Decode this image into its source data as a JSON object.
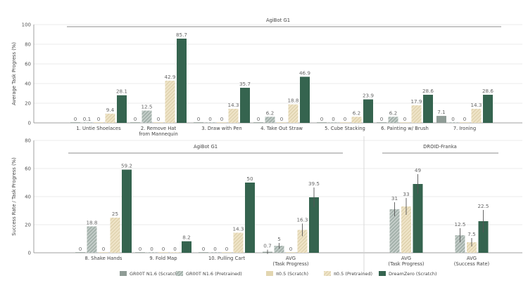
{
  "colors": {
    "gr_scratch": "#8f9c96",
    "gr_pretrained": "#a7b4ae",
    "pi_scratch": "#e3d6b0",
    "pi_pretrained": "#eee3c6",
    "dreamzero": "#35644f",
    "grid": "#e4e4e4",
    "axis": "#888888"
  },
  "legend": [
    {
      "key": "gr_scratch",
      "label": "GR00T N1.6 (Scratch)"
    },
    {
      "key": "gr_pretrained",
      "label": "GR00T N1.6 (Pretrained)"
    },
    {
      "key": "pi_scratch",
      "label": "π0.5 (Scratch)"
    },
    {
      "key": "pi_pretrained",
      "label": "π0.5 (Pretrained)"
    },
    {
      "key": "dreamzero",
      "label": "DreamZero (Scratch)"
    }
  ],
  "chart_data": [
    {
      "type": "bar",
      "ylabel": "Average Task Progress (%)",
      "ylim": [
        0,
        100
      ],
      "yticks": [
        0,
        20,
        40,
        60,
        80,
        100
      ],
      "group_labels": [
        "AgiBot G1"
      ],
      "categories": [
        [
          "1. Untie Shoelaces"
        ],
        [
          "2. Remove Hat",
          "from Mannequin"
        ],
        [
          "3. Draw with Pen"
        ],
        [
          "4. Take Out Straw"
        ],
        [
          "5. Cube Stacking"
        ],
        [
          "6. Painting w/ Brush"
        ],
        [
          "7. Ironing"
        ]
      ],
      "series": [
        {
          "name": "GR00T N1.6 (Scratch)",
          "values": [
            0,
            0,
            0,
            0,
            0,
            0,
            7.1
          ]
        },
        {
          "name": "GR00T N1.6 (Pretrained)",
          "values": [
            0.1,
            12.5,
            0,
            6.2,
            0,
            6.2,
            0
          ]
        },
        {
          "name": "π0.5 (Scratch)",
          "values": [
            0,
            0,
            0,
            0,
            0,
            0,
            0
          ]
        },
        {
          "name": "π0.5 (Pretrained)",
          "values": [
            9.4,
            42.9,
            14.3,
            18.8,
            6.2,
            17.9,
            14.3
          ]
        },
        {
          "name": "DreamZero (Scratch)",
          "values": [
            28.1,
            85.7,
            35.7,
            46.9,
            23.9,
            28.6,
            28.6
          ]
        }
      ]
    },
    {
      "type": "bar",
      "ylabel": "Success Rate / Task Progress (%)",
      "ylim": [
        0,
        80
      ],
      "yticks": [
        0,
        20,
        40,
        60,
        80
      ],
      "group_labels": [
        "AgiBot G1",
        "DROID-Franka"
      ],
      "categories": [
        [
          "8. Shake Hands"
        ],
        [
          "9. Fold Map"
        ],
        [
          "10. Pulling Cart"
        ],
        [
          "AVG",
          "(Task Progress)"
        ],
        [
          "AVG",
          "(Task Progress)"
        ],
        [
          "AVG",
          "(Success Rate)"
        ]
      ],
      "series": [
        {
          "name": "GR00T N1.6 (Scratch)",
          "values": [
            0,
            0,
            0,
            0.7,
            null,
            null
          ]
        },
        {
          "name": "GR00T N1.6 (Pretrained)",
          "values": [
            18.8,
            0,
            0,
            5,
            31,
            12.5
          ]
        },
        {
          "name": "π0.5 (Scratch)",
          "values": [
            0,
            0,
            0,
            0,
            null,
            null
          ]
        },
        {
          "name": "π0.5 (Pretrained)",
          "values": [
            25,
            0,
            14.3,
            16.3,
            33,
            7.5
          ]
        },
        {
          "name": "DreamZero (Scratch)",
          "values": [
            59.2,
            8.2,
            50,
            39.5,
            49,
            22.5
          ]
        }
      ]
    }
  ]
}
